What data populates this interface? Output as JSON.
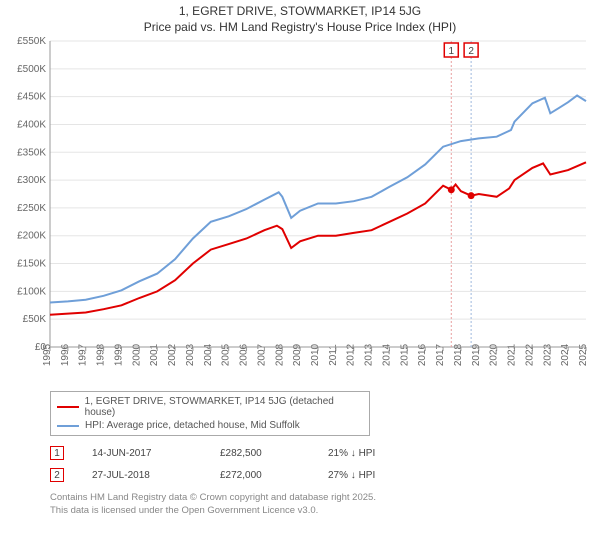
{
  "title_line1": "1, EGRET DRIVE, STOWMARKET, IP14 5JG",
  "title_line2": "Price paid vs. HM Land Registry's House Price Index (HPI)",
  "chart": {
    "type": "line",
    "xmin": 1995,
    "xmax": 2025,
    "ymin": 0,
    "ymax": 550,
    "ytick_step": 50,
    "ytick_prefix": "£",
    "ytick_suffix": "K",
    "xtick_step": 1,
    "grid_color": "#e5e5e5",
    "axis_color": "#999999",
    "background": "#ffffff",
    "series": [
      {
        "id": "price_paid",
        "label": "1, EGRET DRIVE, STOWMARKET, IP14 5JG (detached house)",
        "color": "#e00000",
        "stroke_width": 2,
        "data": [
          [
            1995,
            58
          ],
          [
            1996,
            60
          ],
          [
            1997,
            62
          ],
          [
            1998,
            68
          ],
          [
            1999,
            75
          ],
          [
            2000,
            88
          ],
          [
            2001,
            100
          ],
          [
            2002,
            120
          ],
          [
            2003,
            150
          ],
          [
            2004,
            175
          ],
          [
            2005,
            185
          ],
          [
            2006,
            195
          ],
          [
            2007,
            210
          ],
          [
            2007.7,
            218
          ],
          [
            2008,
            212
          ],
          [
            2008.5,
            178
          ],
          [
            2009,
            190
          ],
          [
            2010,
            200
          ],
          [
            2011,
            200
          ],
          [
            2012,
            205
          ],
          [
            2013,
            210
          ],
          [
            2014,
            225
          ],
          [
            2015,
            240
          ],
          [
            2016,
            258
          ],
          [
            2017,
            290
          ],
          [
            2017.46,
            282.5
          ],
          [
            2017.7,
            292
          ],
          [
            2018,
            280
          ],
          [
            2018.57,
            272
          ],
          [
            2019,
            275
          ],
          [
            2020,
            270
          ],
          [
            2020.7,
            285
          ],
          [
            2021,
            300
          ],
          [
            2022,
            322
          ],
          [
            2022.6,
            330
          ],
          [
            2023,
            310
          ],
          [
            2024,
            318
          ],
          [
            2025,
            332
          ]
        ]
      },
      {
        "id": "hpi",
        "label": "HPI: Average price, detached house, Mid Suffolk",
        "color": "#6f9fd8",
        "stroke_width": 2,
        "data": [
          [
            1995,
            80
          ],
          [
            1996,
            82
          ],
          [
            1997,
            85
          ],
          [
            1998,
            92
          ],
          [
            1999,
            102
          ],
          [
            2000,
            118
          ],
          [
            2001,
            132
          ],
          [
            2002,
            158
          ],
          [
            2003,
            195
          ],
          [
            2004,
            225
          ],
          [
            2005,
            235
          ],
          [
            2006,
            248
          ],
          [
            2007,
            265
          ],
          [
            2007.8,
            278
          ],
          [
            2008,
            270
          ],
          [
            2008.5,
            232
          ],
          [
            2009,
            245
          ],
          [
            2010,
            258
          ],
          [
            2011,
            258
          ],
          [
            2012,
            262
          ],
          [
            2013,
            270
          ],
          [
            2014,
            288
          ],
          [
            2015,
            305
          ],
          [
            2016,
            328
          ],
          [
            2017,
            360
          ],
          [
            2018,
            370
          ],
          [
            2019,
            375
          ],
          [
            2020,
            378
          ],
          [
            2020.8,
            390
          ],
          [
            2021,
            405
          ],
          [
            2022,
            438
          ],
          [
            2022.7,
            448
          ],
          [
            2023,
            420
          ],
          [
            2023.5,
            430
          ],
          [
            2024,
            440
          ],
          [
            2024.5,
            452
          ],
          [
            2025,
            442
          ]
        ]
      }
    ],
    "markers": [
      {
        "id": 1,
        "label": "1",
        "x": 2017.46,
        "y": 282.5,
        "color": "#e00000",
        "vline_color": "#e8a0a0"
      },
      {
        "id": 2,
        "label": "2",
        "x": 2018.57,
        "y": 272.0,
        "color": "#e00000",
        "vline_color": "#9eb8dc"
      }
    ]
  },
  "legend": [
    {
      "color": "#e00000",
      "text": "1, EGRET DRIVE, STOWMARKET, IP14 5JG (detached house)"
    },
    {
      "color": "#6f9fd8",
      "text": "HPI: Average price, detached house, Mid Suffolk"
    }
  ],
  "transactions": [
    {
      "marker": "1",
      "marker_color": "#e00000",
      "date": "14-JUN-2017",
      "price": "£282,500",
      "delta": "21% ↓ HPI"
    },
    {
      "marker": "2",
      "marker_color": "#e00000",
      "date": "27-JUL-2018",
      "price": "£272,000",
      "delta": "27% ↓ HPI"
    }
  ],
  "footer_line1": "Contains HM Land Registry data © Crown copyright and database right 2025.",
  "footer_line2": "This data is licensed under the Open Government Licence v3.0."
}
